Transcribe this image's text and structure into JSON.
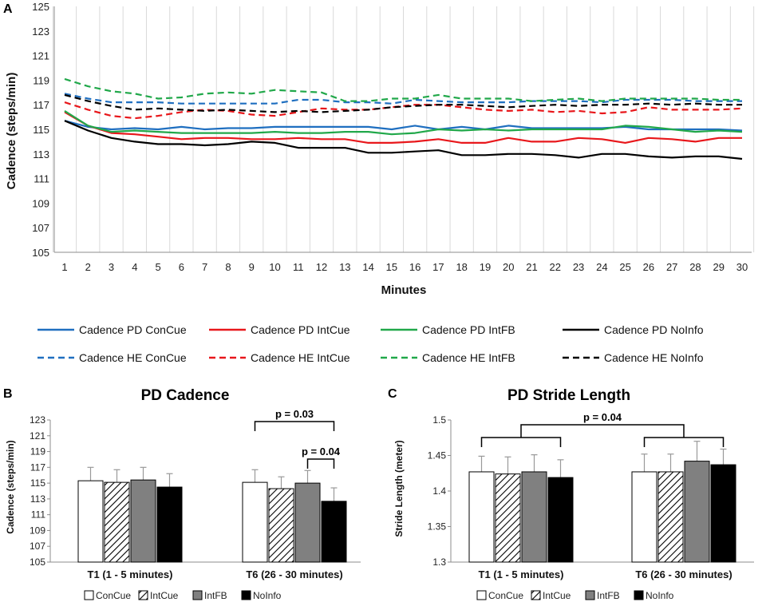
{
  "chart_data": [
    {
      "panel": "A",
      "type": "line",
      "title": "",
      "xlabel": "Minutes",
      "ylabel": "Cadence (steps/min)",
      "ylim": [
        105,
        125
      ],
      "yticks": [
        105,
        107,
        109,
        111,
        113,
        115,
        117,
        119,
        121,
        123,
        125
      ],
      "x": [
        1,
        2,
        3,
        4,
        5,
        6,
        7,
        8,
        9,
        10,
        11,
        12,
        13,
        14,
        15,
        16,
        17,
        18,
        19,
        20,
        21,
        22,
        23,
        24,
        25,
        26,
        27,
        28,
        29,
        30
      ],
      "grid": "vertical-gridlines",
      "legend_position": "bottom",
      "series": [
        {
          "name": "Cadence PD ConCue",
          "color": "#1f6fc0",
          "dash": "solid",
          "values": [
            115.7,
            115.2,
            115.0,
            115.1,
            115.0,
            115.2,
            115.0,
            115.1,
            115.1,
            115.2,
            115.2,
            115.2,
            115.2,
            115.2,
            115.0,
            115.3,
            115.0,
            115.2,
            115.0,
            115.3,
            115.1,
            115.1,
            115.1,
            115.1,
            115.2,
            115.0,
            115.0,
            115.0,
            115.0,
            114.9
          ]
        },
        {
          "name": "Cadence PD IntCue",
          "color": "#e8171b",
          "dash": "solid",
          "values": [
            116.4,
            115.3,
            114.7,
            114.6,
            114.4,
            114.2,
            114.3,
            114.3,
            114.2,
            114.2,
            114.3,
            114.2,
            114.2,
            113.9,
            113.9,
            114.0,
            114.2,
            113.9,
            113.9,
            114.3,
            114.0,
            114.0,
            114.3,
            114.2,
            113.9,
            114.3,
            114.2,
            114.0,
            114.3,
            114.3
          ]
        },
        {
          "name": "Cadence PD IntFB",
          "color": "#21a84a",
          "dash": "solid",
          "values": [
            116.5,
            115.3,
            114.8,
            114.9,
            114.8,
            114.7,
            114.7,
            114.7,
            114.7,
            114.8,
            114.7,
            114.7,
            114.8,
            114.8,
            114.6,
            114.7,
            115.0,
            114.9,
            115.0,
            114.9,
            115.0,
            115.0,
            115.0,
            115.0,
            115.3,
            115.2,
            115.0,
            114.8,
            114.9,
            114.8
          ]
        },
        {
          "name": "Cadence PD NoInfo",
          "color": "#000000",
          "dash": "solid",
          "values": [
            115.7,
            114.9,
            114.3,
            114.0,
            113.8,
            113.8,
            113.7,
            113.8,
            114.0,
            113.9,
            113.5,
            113.5,
            113.5,
            113.1,
            113.1,
            113.2,
            113.3,
            112.9,
            112.9,
            113.0,
            113.0,
            112.9,
            112.7,
            113.0,
            113.0,
            112.8,
            112.7,
            112.8,
            112.8,
            112.6
          ]
        },
        {
          "name": "Cadence HE ConCue",
          "color": "#1f6fc0",
          "dash": "dashed",
          "values": [
            117.9,
            117.5,
            117.2,
            117.2,
            117.2,
            117.1,
            117.1,
            117.1,
            117.1,
            117.1,
            117.4,
            117.4,
            117.2,
            117.2,
            117.1,
            117.4,
            117.3,
            117.2,
            117.2,
            117.2,
            117.3,
            117.3,
            117.3,
            117.2,
            117.4,
            117.4,
            117.4,
            117.3,
            117.3,
            117.3
          ]
        },
        {
          "name": "Cadence HE IntCue",
          "color": "#e8171b",
          "dash": "dashed",
          "values": [
            117.2,
            116.6,
            116.1,
            115.9,
            116.1,
            116.4,
            116.6,
            116.5,
            116.2,
            116.1,
            116.4,
            116.7,
            116.6,
            116.6,
            116.8,
            117.0,
            117.0,
            116.8,
            116.6,
            116.5,
            116.6,
            116.4,
            116.5,
            116.3,
            116.4,
            116.8,
            116.6,
            116.6,
            116.6,
            116.7
          ]
        },
        {
          "name": "Cadence HE IntFB",
          "color": "#21a84a",
          "dash": "dashed",
          "values": [
            119.1,
            118.5,
            118.1,
            117.9,
            117.5,
            117.6,
            117.9,
            118.0,
            117.9,
            118.2,
            118.1,
            118.0,
            117.3,
            117.3,
            117.5,
            117.5,
            117.8,
            117.5,
            117.5,
            117.5,
            117.3,
            117.4,
            117.5,
            117.3,
            117.5,
            117.5,
            117.5,
            117.5,
            117.4,
            117.4
          ]
        },
        {
          "name": "Cadence HE NoInfo",
          "color": "#000000",
          "dash": "dashed",
          "values": [
            117.8,
            117.3,
            116.9,
            116.6,
            116.7,
            116.6,
            116.5,
            116.6,
            116.5,
            116.4,
            116.5,
            116.4,
            116.5,
            116.6,
            116.8,
            116.9,
            117.0,
            117.0,
            116.9,
            116.8,
            116.9,
            117.0,
            116.9,
            117.0,
            117.0,
            117.1,
            117.0,
            117.1,
            117.0,
            117.0
          ]
        }
      ]
    },
    {
      "panel": "B",
      "type": "bar",
      "title": "PD Cadence",
      "xlabel": "",
      "ylabel": "Cadence (steps/min)",
      "ylim": [
        105,
        123
      ],
      "yticks": [
        105,
        107,
        109,
        111,
        113,
        115,
        117,
        119,
        121,
        123
      ],
      "categories": [
        "T1 (1 - 5 minutes)",
        "T6 (26 - 30 minutes)"
      ],
      "series": [
        {
          "name": "ConCue",
          "values": [
            115.3,
            115.1
          ],
          "errors": [
            1.7,
            1.6
          ]
        },
        {
          "name": "IntCue",
          "values": [
            115.1,
            114.3
          ],
          "errors": [
            1.6,
            1.5
          ]
        },
        {
          "name": "IntFB",
          "values": [
            115.4,
            115.0
          ],
          "errors": [
            1.6,
            1.6
          ]
        },
        {
          "name": "NoInfo",
          "values": [
            114.5,
            112.7
          ],
          "errors": [
            1.7,
            1.7
          ]
        }
      ],
      "annotations": [
        "p = 0.03",
        "p = 0.04"
      ],
      "legend_position": "bottom"
    },
    {
      "panel": "C",
      "type": "bar",
      "title": "PD Stride Length",
      "xlabel": "",
      "ylabel": "Stride Length (meter)",
      "ylim": [
        1.3,
        1.5
      ],
      "yticks": [
        "1.3",
        "1.35",
        "1.4",
        "1.45",
        "1.5"
      ],
      "categories": [
        "T1 (1 - 5 minutes)",
        "T6 (26 - 30 minutes)"
      ],
      "series": [
        {
          "name": "ConCue",
          "values": [
            1.427,
            1.427
          ],
          "errors": [
            0.022,
            0.025
          ]
        },
        {
          "name": "IntCue",
          "values": [
            1.424,
            1.427
          ],
          "errors": [
            0.024,
            0.025
          ]
        },
        {
          "name": "IntFB",
          "values": [
            1.427,
            1.442
          ],
          "errors": [
            0.024,
            0.028
          ]
        },
        {
          "name": "NoInfo",
          "values": [
            1.419,
            1.437
          ],
          "errors": [
            0.025,
            0.022
          ]
        }
      ],
      "annotations": [
        "p = 0.04"
      ],
      "legend_position": "bottom"
    }
  ],
  "panel_labels": [
    "A",
    "B",
    "C"
  ],
  "bar_styles": {
    "ConCue": {
      "fill": "#ffffff",
      "pattern": "none"
    },
    "IntCue": {
      "fill": "#ffffff",
      "pattern": "hatch"
    },
    "IntFB": {
      "fill": "#808080",
      "pattern": "none"
    },
    "NoInfo": {
      "fill": "#000000",
      "pattern": "none"
    }
  }
}
